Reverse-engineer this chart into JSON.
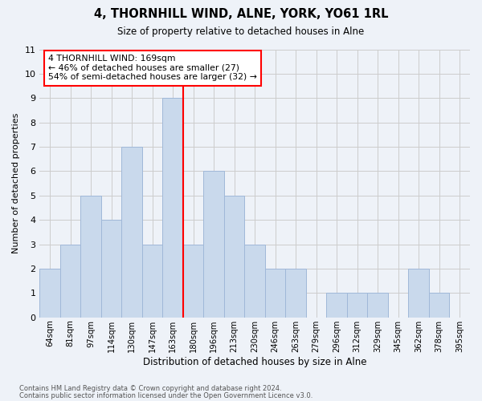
{
  "title": "4, THORNHILL WIND, ALNE, YORK, YO61 1RL",
  "subtitle": "Size of property relative to detached houses in Alne",
  "xlabel": "Distribution of detached houses by size in Alne",
  "ylabel": "Number of detached properties",
  "footnote1": "Contains HM Land Registry data © Crown copyright and database right 2024.",
  "footnote2": "Contains public sector information licensed under the Open Government Licence v3.0.",
  "categories": [
    "64sqm",
    "81sqm",
    "97sqm",
    "114sqm",
    "130sqm",
    "147sqm",
    "163sqm",
    "180sqm",
    "196sqm",
    "213sqm",
    "230sqm",
    "246sqm",
    "263sqm",
    "279sqm",
    "296sqm",
    "312sqm",
    "329sqm",
    "345sqm",
    "362sqm",
    "378sqm",
    "395sqm"
  ],
  "values": [
    2,
    3,
    5,
    4,
    7,
    3,
    9,
    3,
    6,
    5,
    3,
    2,
    2,
    0,
    1,
    1,
    1,
    0,
    2,
    1,
    0
  ],
  "bar_color": "#c9d9ec",
  "bar_edge_color": "#a0b8d8",
  "bar_linewidth": 0.7,
  "property_line_index": 6,
  "property_line_color": "red",
  "annotation_title": "4 THORNHILL WIND: 169sqm",
  "annotation_line1": "← 46% of detached houses are smaller (27)",
  "annotation_line2": "54% of semi-detached houses are larger (32) →",
  "annotation_box_color": "white",
  "annotation_box_edge": "red",
  "grid_color": "#cccccc",
  "background_color": "#eef2f8",
  "ylim": [
    0,
    11
  ],
  "yticks": [
    0,
    1,
    2,
    3,
    4,
    5,
    6,
    7,
    8,
    9,
    10,
    11
  ]
}
